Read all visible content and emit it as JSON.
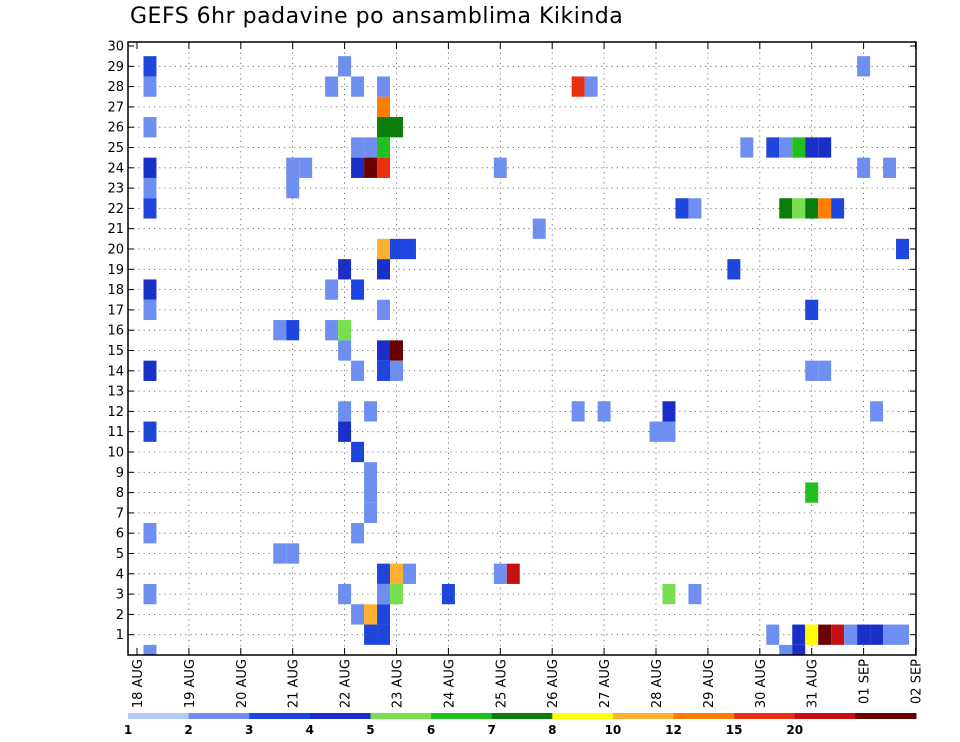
{
  "chart_data": {
    "type": "heatmap",
    "title": "GEFS 6hr padavine po ansamblima Kikinda",
    "xlabel": "",
    "ylabel": "",
    "x_tick_labels": [
      "18 AUG",
      "19 AUG",
      "20 AUG",
      "21 AUG",
      "22 AUG",
      "23 AUG",
      "24 AUG",
      "25 AUG",
      "26 AUG",
      "27 AUG",
      "28 AUG",
      "29 AUG",
      "30 AUG",
      "31 AUG",
      "01 SEP",
      "02 SEP"
    ],
    "y_tick_labels": [
      "1",
      "2",
      "3",
      "4",
      "5",
      "6",
      "7",
      "8",
      "9",
      "10",
      "11",
      "12",
      "13",
      "14",
      "15",
      "16",
      "17",
      "18",
      "19",
      "20",
      "21",
      "22",
      "23",
      "24",
      "25",
      "26",
      "27",
      "28",
      "29",
      "30"
    ],
    "xlim_days": [
      0,
      15
    ],
    "ylim_members": [
      0,
      30
    ],
    "time_step_days": 0.25,
    "grid": "dotted",
    "colorbar": {
      "levels": [
        "1",
        "2",
        "3",
        "4",
        "5",
        "6",
        "7",
        "8",
        "10",
        "12",
        "15",
        "20"
      ],
      "colors": [
        "#b4c8f5",
        "#6e8ff0",
        "#1e46dc",
        "#1a2fc8",
        "#78e050",
        "#20c020",
        "#0a7d0a",
        "#ffff00",
        "#ffb030",
        "#ff7d00",
        "#e83010",
        "#c41010",
        "#6a0000"
      ]
    },
    "cells": [
      {
        "x": 0.25,
        "m": 29,
        "c": 2
      },
      {
        "x": 0.25,
        "m": 28,
        "c": 1
      },
      {
        "x": 0.25,
        "m": 26,
        "c": 1
      },
      {
        "x": 0.25,
        "m": 24,
        "c": 3
      },
      {
        "x": 0.25,
        "m": 23,
        "c": 1
      },
      {
        "x": 0.25,
        "m": 22,
        "c": 2
      },
      {
        "x": 0.25,
        "m": 18,
        "c": 3
      },
      {
        "x": 0.25,
        "m": 17,
        "c": 1
      },
      {
        "x": 0.25,
        "m": 14,
        "c": 3
      },
      {
        "x": 0.25,
        "m": 11,
        "c": 2
      },
      {
        "x": 0.25,
        "m": 6,
        "c": 1
      },
      {
        "x": 0.25,
        "m": 3,
        "c": 1
      },
      {
        "x": 0.25,
        "m": 0,
        "c": 1
      },
      {
        "x": 3.0,
        "m": 24,
        "c": 1
      },
      {
        "x": 3.0,
        "m": 23,
        "c": 1
      },
      {
        "x": 3.25,
        "m": 24,
        "c": 1
      },
      {
        "x": 3.75,
        "m": 28,
        "c": 1
      },
      {
        "x": 4.0,
        "m": 29,
        "c": 1
      },
      {
        "x": 4.25,
        "m": 28,
        "c": 1
      },
      {
        "x": 4.75,
        "m": 28,
        "c": 1
      },
      {
        "x": 4.25,
        "m": 25,
        "c": 1
      },
      {
        "x": 4.5,
        "m": 25,
        "c": 1
      },
      {
        "x": 4.75,
        "m": 25,
        "c": 5
      },
      {
        "x": 4.75,
        "m": 27,
        "c": 9
      },
      {
        "x": 4.75,
        "m": 26,
        "c": 6
      },
      {
        "x": 5.0,
        "m": 26,
        "c": 6
      },
      {
        "x": 4.25,
        "m": 24,
        "c": 3
      },
      {
        "x": 4.5,
        "m": 24,
        "c": 12
      },
      {
        "x": 4.75,
        "m": 24,
        "c": 10
      },
      {
        "x": 4.75,
        "m": 20,
        "c": 8
      },
      {
        "x": 5.0,
        "m": 20,
        "c": 2
      },
      {
        "x": 5.25,
        "m": 20,
        "c": 2
      },
      {
        "x": 4.0,
        "m": 19,
        "c": 3
      },
      {
        "x": 4.75,
        "m": 19,
        "c": 3
      },
      {
        "x": 3.75,
        "m": 18,
        "c": 1
      },
      {
        "x": 4.25,
        "m": 18,
        "c": 2
      },
      {
        "x": 4.75,
        "m": 17,
        "c": 1
      },
      {
        "x": 2.75,
        "m": 16,
        "c": 1
      },
      {
        "x": 3.0,
        "m": 16,
        "c": 2
      },
      {
        "x": 3.75,
        "m": 16,
        "c": 1
      },
      {
        "x": 4.0,
        "m": 16,
        "c": 4
      },
      {
        "x": 4.0,
        "m": 15,
        "c": 1
      },
      {
        "x": 4.75,
        "m": 15,
        "c": 3
      },
      {
        "x": 5.0,
        "m": 15,
        "c": 12
      },
      {
        "x": 4.25,
        "m": 14,
        "c": 1
      },
      {
        "x": 4.75,
        "m": 14,
        "c": 2
      },
      {
        "x": 5.0,
        "m": 14,
        "c": 1
      },
      {
        "x": 4.0,
        "m": 12,
        "c": 1
      },
      {
        "x": 4.5,
        "m": 12,
        "c": 1
      },
      {
        "x": 4.0,
        "m": 11,
        "c": 3
      },
      {
        "x": 4.25,
        "m": 10,
        "c": 2
      },
      {
        "x": 4.5,
        "m": 9,
        "c": 1
      },
      {
        "x": 4.5,
        "m": 8,
        "c": 1
      },
      {
        "x": 4.5,
        "m": 7,
        "c": 1
      },
      {
        "x": 4.25,
        "m": 6,
        "c": 1
      },
      {
        "x": 2.75,
        "m": 5,
        "c": 1
      },
      {
        "x": 3.0,
        "m": 5,
        "c": 1
      },
      {
        "x": 4.75,
        "m": 4,
        "c": 2
      },
      {
        "x": 5.0,
        "m": 4,
        "c": 8
      },
      {
        "x": 5.25,
        "m": 4,
        "c": 1
      },
      {
        "x": 4.0,
        "m": 3,
        "c": 1
      },
      {
        "x": 4.75,
        "m": 3,
        "c": 1
      },
      {
        "x": 5.0,
        "m": 3,
        "c": 4
      },
      {
        "x": 4.25,
        "m": 2,
        "c": 1
      },
      {
        "x": 4.5,
        "m": 2,
        "c": 8
      },
      {
        "x": 4.75,
        "m": 2,
        "c": 2
      },
      {
        "x": 4.5,
        "m": 1,
        "c": 2
      },
      {
        "x": 4.75,
        "m": 1,
        "c": 2
      },
      {
        "x": 6.0,
        "m": 3,
        "c": 2
      },
      {
        "x": 7.0,
        "m": 24,
        "c": 1
      },
      {
        "x": 7.0,
        "m": 4,
        "c": 1
      },
      {
        "x": 7.25,
        "m": 4,
        "c": 11
      },
      {
        "x": 7.75,
        "m": 21,
        "c": 1
      },
      {
        "x": 8.5,
        "m": 28,
        "c": 10
      },
      {
        "x": 8.75,
        "m": 28,
        "c": 1
      },
      {
        "x": 8.5,
        "m": 12,
        "c": 1
      },
      {
        "x": 9.0,
        "m": 12,
        "c": 1
      },
      {
        "x": 10.0,
        "m": 11,
        "c": 1
      },
      {
        "x": 10.25,
        "m": 11,
        "c": 1
      },
      {
        "x": 10.25,
        "m": 12,
        "c": 3
      },
      {
        "x": 10.25,
        "m": 3,
        "c": 4
      },
      {
        "x": 10.75,
        "m": 3,
        "c": 1
      },
      {
        "x": 10.5,
        "m": 22,
        "c": 2
      },
      {
        "x": 10.75,
        "m": 22,
        "c": 1
      },
      {
        "x": 11.5,
        "m": 19,
        "c": 2
      },
      {
        "x": 11.75,
        "m": 25,
        "c": 1
      },
      {
        "x": 12.25,
        "m": 25,
        "c": 2
      },
      {
        "x": 12.5,
        "m": 25,
        "c": 1
      },
      {
        "x": 12.75,
        "m": 25,
        "c": 5
      },
      {
        "x": 13.0,
        "m": 25,
        "c": 3
      },
      {
        "x": 13.25,
        "m": 25,
        "c": 3
      },
      {
        "x": 12.5,
        "m": 22,
        "c": 6
      },
      {
        "x": 12.75,
        "m": 22,
        "c": 4
      },
      {
        "x": 13.0,
        "m": 22,
        "c": 6
      },
      {
        "x": 13.25,
        "m": 22,
        "c": 9
      },
      {
        "x": 13.5,
        "m": 22,
        "c": 2
      },
      {
        "x": 13.0,
        "m": 17,
        "c": 2
      },
      {
        "x": 13.0,
        "m": 14,
        "c": 1
      },
      {
        "x": 13.25,
        "m": 14,
        "c": 1
      },
      {
        "x": 13.0,
        "m": 8,
        "c": 5
      },
      {
        "x": 14.0,
        "m": 29,
        "c": 1
      },
      {
        "x": 14.0,
        "m": 24,
        "c": 1
      },
      {
        "x": 14.5,
        "m": 24,
        "c": 1
      },
      {
        "x": 14.25,
        "m": 12,
        "c": 1
      },
      {
        "x": 14.75,
        "m": 20,
        "c": 2
      },
      {
        "x": 12.25,
        "m": 1,
        "c": 1
      },
      {
        "x": 12.5,
        "m": 0,
        "c": 1
      },
      {
        "x": 12.75,
        "m": 1,
        "c": 3
      },
      {
        "x": 12.75,
        "m": 0,
        "c": 3
      },
      {
        "x": 13.0,
        "m": 1,
        "c": 7
      },
      {
        "x": 13.25,
        "m": 1,
        "c": 12
      },
      {
        "x": 13.5,
        "m": 1,
        "c": 11
      },
      {
        "x": 13.75,
        "m": 1,
        "c": 1
      },
      {
        "x": 14.0,
        "m": 1,
        "c": 3
      },
      {
        "x": 14.25,
        "m": 1,
        "c": 3
      },
      {
        "x": 14.5,
        "m": 1,
        "c": 1
      },
      {
        "x": 14.75,
        "m": 1,
        "c": 1
      }
    ]
  }
}
